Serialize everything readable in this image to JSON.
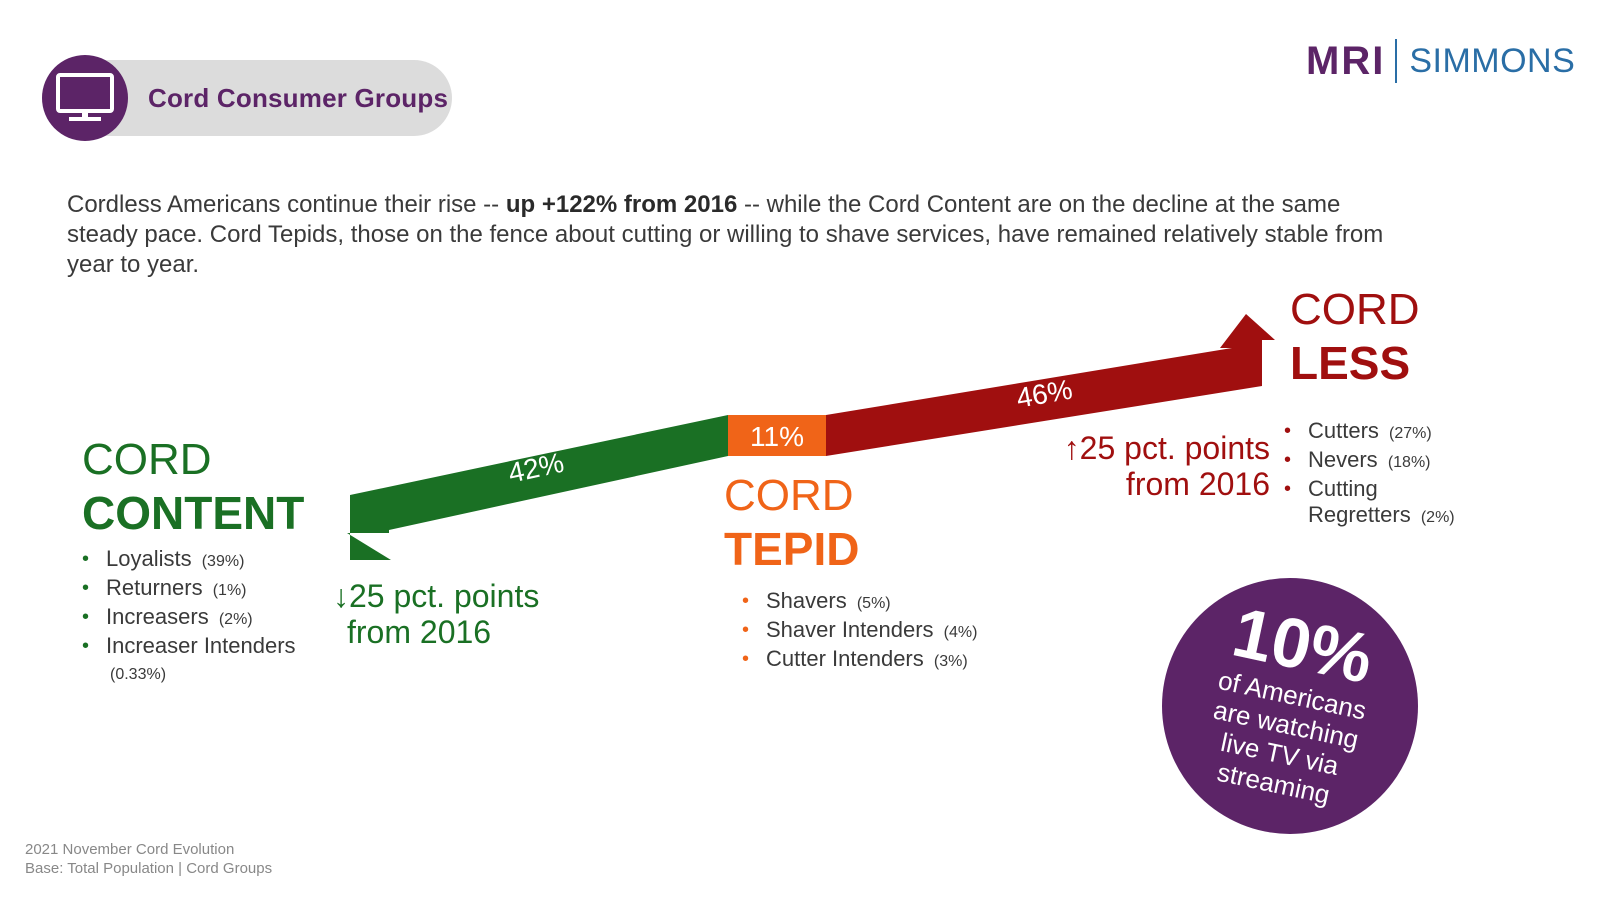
{
  "header": {
    "title": "Cord Consumer Groups",
    "icon": "tv-icon"
  },
  "logo": {
    "left": "MRI",
    "right": "SIMMONS"
  },
  "intro": {
    "part1": "Cordless Americans continue their rise -- ",
    "bold": "up +122% from 2016",
    "part2": " -- while the Cord Content are on the decline at the same steady pace. Cord Tepids, those on the fence about cutting or willing to shave services, have remained relatively stable from year to year."
  },
  "chart_data": {
    "type": "bar",
    "categories": [
      "CORD CONTENT",
      "CORD TEPID",
      "CORD LESS"
    ],
    "values": [
      42,
      11,
      46
    ],
    "value_labels": [
      "42%",
      "11%",
      "46%"
    ],
    "unit": "%",
    "colors": [
      "#1a7024",
      "#f06418",
      "#a00f0f"
    ]
  },
  "groups": {
    "content": {
      "line1": "CORD",
      "line2": "CONTENT",
      "items": [
        {
          "label": "Loyalists",
          "pct": "(39%)"
        },
        {
          "label": "Returners",
          "pct": "(1%)"
        },
        {
          "label": "Increasers",
          "pct": "(2%)"
        },
        {
          "label": "Increaser Intenders",
          "pct": "(0.33%)"
        }
      ],
      "delta_line1": "↓25 pct. points",
      "delta_line2": "from 2016"
    },
    "tepid": {
      "line1": "CORD",
      "line2": "TEPID",
      "items": [
        {
          "label": "Shavers",
          "pct": "(5%)"
        },
        {
          "label": "Shaver Intenders",
          "pct": "(4%)"
        },
        {
          "label": "Cutter Intenders",
          "pct": "(3%)"
        }
      ]
    },
    "less": {
      "line1": "CORD",
      "line2": "LESS",
      "items": [
        {
          "label": "Cutters",
          "pct": "(27%)"
        },
        {
          "label": "Nevers",
          "pct": "(18%)"
        },
        {
          "label": "Cutting Regretters",
          "pct": "(2%)"
        }
      ],
      "delta_line1": "↑25 pct. points",
      "delta_line2": "from 2016"
    }
  },
  "callout": {
    "big": "10%",
    "text": "of Americans are watching live TV via streaming"
  },
  "footer": {
    "line1": "2021 November Cord Evolution",
    "line2": "Base: Total Population  |  Cord Groups"
  }
}
